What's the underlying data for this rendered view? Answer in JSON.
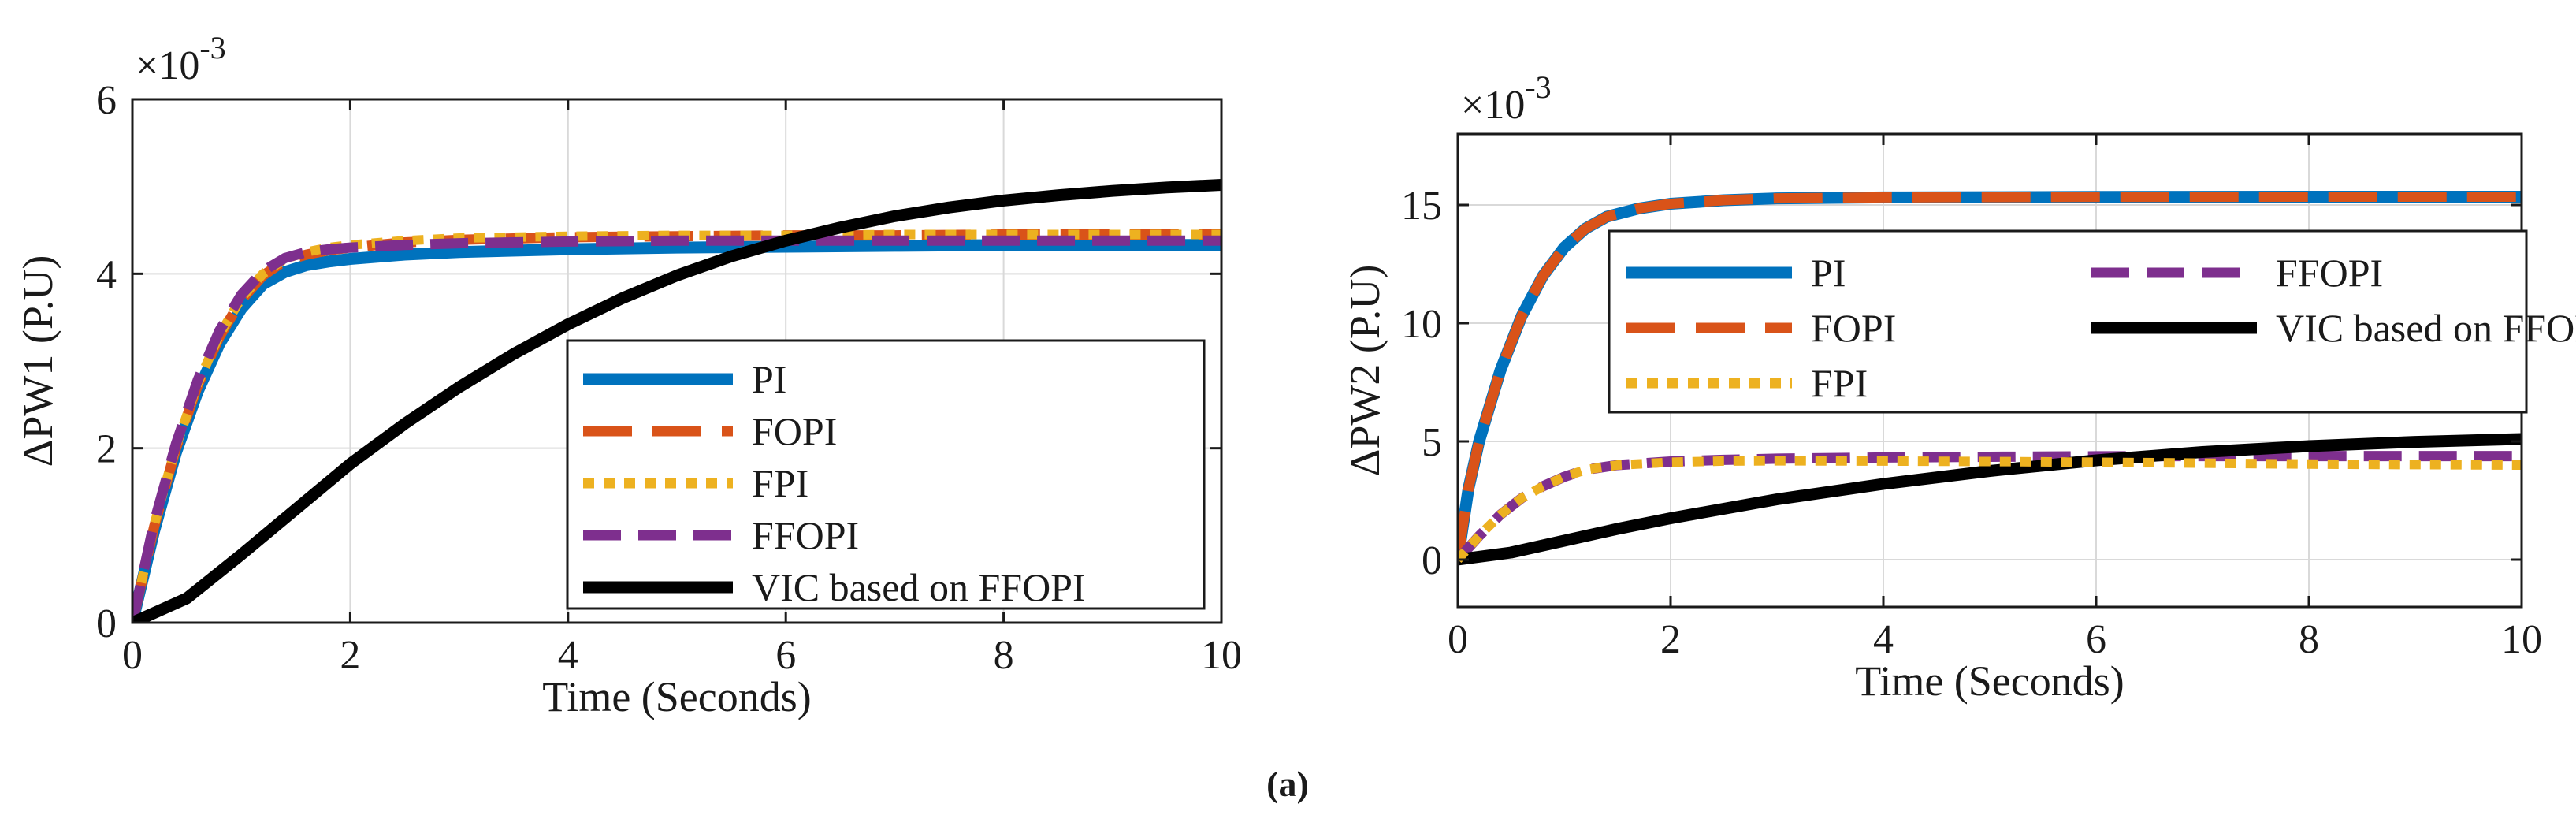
{
  "caption": "(a)",
  "chart_data": [
    {
      "type": "line",
      "xlabel": "Time (Seconds)",
      "ylabel": "ΔPW1 (P.U)",
      "exponent_label": "×10",
      "exponent_power": "-3",
      "xlim": [
        0,
        10
      ],
      "ylim": [
        0,
        6
      ],
      "xticks": [
        0,
        2,
        4,
        6,
        8,
        10
      ],
      "yticks": [
        0,
        2,
        4,
        6
      ],
      "grid": true,
      "legend_position": "bottom-right",
      "legend_columns": 1,
      "series": [
        {
          "name": "PI",
          "color": "#0072BD",
          "style": "solid",
          "x": [
            0,
            0.2,
            0.4,
            0.6,
            0.8,
            1.0,
            1.2,
            1.4,
            1.6,
            1.8,
            2.0,
            2.5,
            3.0,
            4.0,
            5.0,
            6.0,
            7.0,
            8.0,
            9.0,
            10.0
          ],
          "y": [
            0,
            1.05,
            1.95,
            2.65,
            3.2,
            3.6,
            3.88,
            4.02,
            4.1,
            4.14,
            4.17,
            4.22,
            4.25,
            4.28,
            4.3,
            4.31,
            4.32,
            4.33,
            4.33,
            4.33
          ]
        },
        {
          "name": "FOPI",
          "color": "#D95319",
          "style": "dashed",
          "x": [
            0,
            0.2,
            0.4,
            0.6,
            0.8,
            1.0,
            1.2,
            1.4,
            1.6,
            1.8,
            2.0,
            2.5,
            3.0,
            4.0,
            5.0,
            6.0,
            7.0,
            8.0,
            9.0,
            10.0
          ],
          "y": [
            0,
            1.1,
            2.0,
            2.72,
            3.28,
            3.7,
            3.98,
            4.15,
            4.22,
            4.27,
            4.3,
            4.36,
            4.39,
            4.42,
            4.43,
            4.44,
            4.44,
            4.45,
            4.45,
            4.45
          ]
        },
        {
          "name": "FPI",
          "color": "#EDB120",
          "style": "dotted",
          "x": [
            0,
            0.2,
            0.4,
            0.6,
            0.8,
            1.0,
            1.2,
            1.4,
            1.6,
            1.8,
            2.0,
            2.5,
            3.0,
            4.0,
            5.0,
            6.0,
            7.0,
            8.0,
            9.0,
            10.0
          ],
          "y": [
            0,
            1.12,
            2.02,
            2.74,
            3.3,
            3.72,
            4.0,
            4.17,
            4.25,
            4.3,
            4.33,
            4.38,
            4.41,
            4.43,
            4.44,
            4.44,
            4.45,
            4.45,
            4.45,
            4.45
          ]
        },
        {
          "name": "FFOPI",
          "color": "#7E2F8E",
          "style": "longdash",
          "x": [
            0,
            0.2,
            0.4,
            0.6,
            0.8,
            1.0,
            1.2,
            1.4,
            1.6,
            1.8,
            2.0,
            2.5,
            3.0,
            4.0,
            5.0,
            6.0,
            7.0,
            8.0,
            9.0,
            10.0
          ],
          "y": [
            0,
            1.15,
            2.05,
            2.78,
            3.35,
            3.76,
            4.03,
            4.18,
            4.25,
            4.28,
            4.3,
            4.33,
            4.35,
            4.37,
            4.38,
            4.38,
            4.38,
            4.38,
            4.38,
            4.38
          ]
        },
        {
          "name": "VIC based on FFOPI",
          "color": "#000000",
          "style": "solid",
          "x": [
            0,
            0.5,
            1.0,
            1.5,
            2.0,
            2.5,
            3.0,
            3.5,
            4.0,
            4.5,
            5.0,
            5.5,
            6.0,
            6.5,
            7.0,
            7.5,
            8.0,
            8.5,
            9.0,
            9.5,
            10.0
          ],
          "y": [
            0,
            0.28,
            0.78,
            1.3,
            1.82,
            2.28,
            2.7,
            3.08,
            3.42,
            3.72,
            3.98,
            4.2,
            4.38,
            4.53,
            4.66,
            4.76,
            4.84,
            4.9,
            4.95,
            4.99,
            5.02
          ]
        }
      ]
    },
    {
      "type": "line",
      "xlabel": "Time (Seconds)",
      "ylabel": "ΔPW2 (P.U)",
      "exponent_label": "×10",
      "exponent_power": "-3",
      "xlim": [
        0,
        10
      ],
      "ylim": [
        -2,
        18
      ],
      "xticks": [
        0,
        2,
        4,
        6,
        8,
        10
      ],
      "yticks": [
        0,
        5,
        10,
        15
      ],
      "grid": true,
      "legend_position": "top-right",
      "legend_columns": 2,
      "series": [
        {
          "name": "PI",
          "color": "#0072BD",
          "style": "solid",
          "x": [
            0,
            0.1,
            0.2,
            0.4,
            0.6,
            0.8,
            1.0,
            1.2,
            1.4,
            1.7,
            2.0,
            2.5,
            3.0,
            4.0,
            5.0,
            6.0,
            8.0,
            10.0
          ],
          "y": [
            0,
            3.0,
            5.0,
            8.0,
            10.3,
            12.0,
            13.2,
            14.0,
            14.5,
            14.85,
            15.05,
            15.2,
            15.28,
            15.32,
            15.33,
            15.34,
            15.35,
            15.35
          ]
        },
        {
          "name": "FOPI",
          "color": "#D95319",
          "style": "dashed",
          "x": [
            0,
            0.1,
            0.2,
            0.4,
            0.6,
            0.8,
            1.0,
            1.2,
            1.4,
            1.7,
            2.0,
            2.5,
            3.0,
            4.0,
            5.0,
            6.0,
            8.0,
            10.0
          ],
          "y": [
            0,
            3.0,
            5.0,
            8.0,
            10.3,
            12.0,
            13.2,
            14.0,
            14.5,
            14.85,
            15.05,
            15.2,
            15.28,
            15.32,
            15.33,
            15.34,
            15.35,
            15.35
          ]
        },
        {
          "name": "FFOPI",
          "color": "#7E2F8E",
          "style": "longdash",
          "x": [
            0,
            0.2,
            0.4,
            0.6,
            0.8,
            1.0,
            1.2,
            1.5,
            2.0,
            2.5,
            3.0,
            4.0,
            5.0,
            6.0,
            7.0,
            8.0,
            9.0,
            10.0
          ],
          "y": [
            0,
            1.0,
            1.9,
            2.6,
            3.1,
            3.5,
            3.8,
            4.0,
            4.15,
            4.22,
            4.27,
            4.32,
            4.35,
            4.37,
            4.38,
            4.38,
            4.38,
            4.38
          ]
        },
        {
          "name": "VIC based on FFOPI",
          "color": "#000000",
          "style": "solid",
          "x": [
            0,
            0.5,
            1.0,
            1.5,
            2.0,
            3.0,
            4.0,
            5.0,
            6.0,
            7.0,
            8.0,
            9.0,
            10.0
          ],
          "y": [
            0,
            0.3,
            0.8,
            1.3,
            1.75,
            2.55,
            3.2,
            3.75,
            4.2,
            4.55,
            4.8,
            4.98,
            5.1
          ]
        },
        {
          "name": "FPI",
          "color": "#EDB120",
          "style": "dotted",
          "x": [
            0,
            0.2,
            0.4,
            0.6,
            0.8,
            1.0,
            1.2,
            1.5,
            2.0,
            2.5,
            3.0,
            4.0,
            5.0,
            6.0,
            7.0,
            8.0,
            9.0,
            10.0
          ],
          "y": [
            0,
            1.0,
            1.9,
            2.6,
            3.1,
            3.5,
            3.8,
            4.0,
            4.12,
            4.17,
            4.18,
            4.17,
            4.15,
            4.12,
            4.08,
            4.04,
            4.02,
            4.0
          ]
        }
      ]
    }
  ]
}
